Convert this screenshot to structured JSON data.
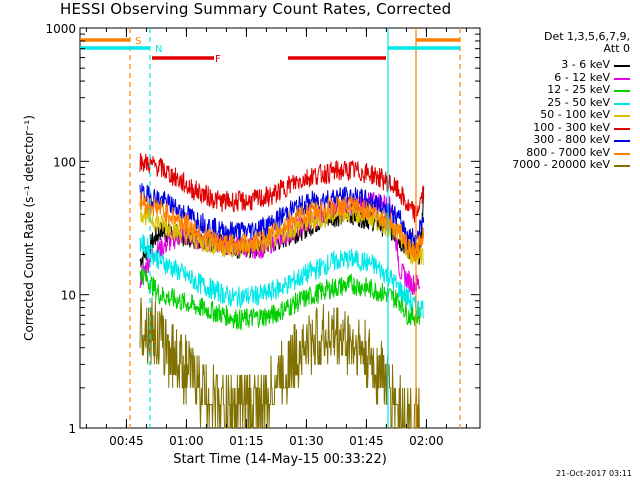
{
  "chart_data": {
    "type": "line",
    "title": "HESSI Observing Summary Count Rates, Corrected",
    "xlabel": "Start Time (14-May-15 00:33:22)",
    "ylabel_html": "Corrected Count Rate (s⁻¹ detector⁻¹)",
    "yscale": "log",
    "ylim": [
      1,
      1000
    ],
    "xlim_minutes": [
      0,
      100
    ],
    "y_tick_labels": [
      "1",
      "10",
      "100",
      "1000"
    ],
    "x_tick_labels": [
      "00:45",
      "01:00",
      "01:15",
      "01:30",
      "01:45",
      "02:00"
    ],
    "x_tick_minutes": [
      11.6,
      26.6,
      41.6,
      56.6,
      71.6,
      86.6
    ],
    "legend_header": [
      "Det 1,3,5,6,7,9,",
      "Att 0"
    ],
    "series": [
      {
        "name": "3 - 6 keV",
        "color": "#000000",
        "points": [
          [
            15,
            18
          ],
          [
            20,
            30
          ],
          [
            30,
            26
          ],
          [
            40,
            22
          ],
          [
            48,
            24
          ],
          [
            55,
            30
          ],
          [
            62,
            38
          ],
          [
            68,
            40
          ],
          [
            73,
            36
          ],
          [
            78,
            30
          ],
          [
            82,
            22
          ],
          [
            85,
            20
          ],
          [
            86,
            60
          ]
        ]
      },
      {
        "name": "6 - 12 keV",
        "color": "#e000e0",
        "points": [
          [
            15,
            13
          ],
          [
            18,
            20
          ],
          [
            25,
            28
          ],
          [
            35,
            24
          ],
          [
            45,
            22
          ],
          [
            55,
            32
          ],
          [
            62,
            42
          ],
          [
            70,
            48
          ],
          [
            75,
            50
          ],
          [
            78,
            45
          ],
          [
            80,
            15
          ],
          [
            83,
            12
          ],
          [
            85,
            12
          ]
        ]
      },
      {
        "name": "12 - 25 keV",
        "color": "#00d000",
        "points": [
          [
            15,
            15
          ],
          [
            20,
            10
          ],
          [
            30,
            8
          ],
          [
            40,
            6.5
          ],
          [
            48,
            7
          ],
          [
            55,
            9
          ],
          [
            62,
            11
          ],
          [
            68,
            12
          ],
          [
            73,
            11
          ],
          [
            77,
            10
          ],
          [
            80,
            9
          ],
          [
            82,
            7
          ],
          [
            84,
            7
          ],
          [
            85,
            7
          ]
        ]
      },
      {
        "name": "25 - 50 keV",
        "color": "#00e8e8",
        "points": [
          [
            15,
            25
          ],
          [
            20,
            18
          ],
          [
            30,
            12
          ],
          [
            38,
            9.5
          ],
          [
            46,
            10
          ],
          [
            52,
            12
          ],
          [
            58,
            15
          ],
          [
            64,
            18
          ],
          [
            68,
            18.5
          ],
          [
            73,
            17
          ],
          [
            77,
            14
          ],
          [
            80,
            11
          ],
          [
            84,
            8
          ],
          [
            86,
            8
          ]
        ]
      },
      {
        "name": "50 - 100 keV",
        "color": "#d8c000",
        "points": [
          [
            15,
            42
          ],
          [
            20,
            34
          ],
          [
            30,
            25
          ],
          [
            38,
            22
          ],
          [
            46,
            24
          ],
          [
            52,
            30
          ],
          [
            58,
            36
          ],
          [
            64,
            40
          ],
          [
            68,
            42
          ],
          [
            73,
            38
          ],
          [
            77,
            32
          ],
          [
            80,
            28
          ],
          [
            82,
            20
          ],
          [
            86,
            20
          ]
        ]
      },
      {
        "name": "100 - 300 keV",
        "color": "#e00000",
        "points": [
          [
            15,
            100
          ],
          [
            20,
            90
          ],
          [
            28,
            62
          ],
          [
            35,
            50
          ],
          [
            42,
            50
          ],
          [
            48,
            55
          ],
          [
            52,
            66
          ],
          [
            58,
            78
          ],
          [
            64,
            84
          ],
          [
            68,
            86
          ],
          [
            73,
            80
          ],
          [
            77,
            70
          ],
          [
            80,
            58
          ],
          [
            82,
            45
          ],
          [
            84,
            40
          ],
          [
            86,
            60
          ]
        ]
      },
      {
        "name": "300 - 800 keV",
        "color": "#0000e0",
        "points": [
          [
            15,
            58
          ],
          [
            20,
            52
          ],
          [
            28,
            38
          ],
          [
            35,
            30
          ],
          [
            42,
            30
          ],
          [
            48,
            34
          ],
          [
            52,
            42
          ],
          [
            58,
            50
          ],
          [
            64,
            54
          ],
          [
            68,
            54
          ],
          [
            73,
            50
          ],
          [
            77,
            44
          ],
          [
            80,
            36
          ],
          [
            82,
            28
          ],
          [
            84,
            26
          ],
          [
            86,
            40
          ]
        ]
      },
      {
        "name": "800 - 7000 keV",
        "color": "#ff8000",
        "points": [
          [
            15,
            50
          ],
          [
            20,
            44
          ],
          [
            28,
            32
          ],
          [
            35,
            24
          ],
          [
            42,
            24
          ],
          [
            48,
            28
          ],
          [
            52,
            35
          ],
          [
            58,
            42
          ],
          [
            64,
            46
          ],
          [
            68,
            46
          ],
          [
            73,
            42
          ],
          [
            77,
            36
          ],
          [
            80,
            30
          ],
          [
            82,
            22
          ],
          [
            84,
            20
          ],
          [
            86,
            30
          ]
        ]
      },
      {
        "name": "7000 - 20000 keV",
        "color": "#807000",
        "points": [
          [
            15,
            6
          ],
          [
            18,
            5.5
          ],
          [
            22,
            4
          ],
          [
            26,
            3
          ],
          [
            30,
            2
          ],
          [
            35,
            1.5
          ],
          [
            40,
            1.5
          ],
          [
            46,
            1.5
          ],
          [
            50,
            2.5
          ],
          [
            54,
            3.5
          ],
          [
            58,
            4.5
          ],
          [
            63,
            5
          ],
          [
            67,
            4.5
          ],
          [
            70,
            4
          ],
          [
            73,
            3
          ],
          [
            76,
            2.5
          ],
          [
            79,
            1.5
          ],
          [
            83,
            1.2
          ],
          [
            85,
            1
          ]
        ]
      }
    ],
    "flags": [
      {
        "label": "S",
        "color": "#ff8000",
        "segments_minutes": [
          [
            0,
            12.5
          ],
          [
            84,
            95
          ]
        ],
        "y_level": "top"
      },
      {
        "label": "N",
        "color": "#00e8e8",
        "segments_minutes": [
          [
            0,
            17.5
          ],
          [
            77,
            95
          ]
        ],
        "y_level": "second"
      },
      {
        "label": "F",
        "color": "#e00000",
        "segments_minutes": [
          [
            18,
            33.5
          ],
          [
            52,
            76.5
          ]
        ],
        "y_level": "third"
      }
    ],
    "vertical_markers": [
      {
        "minute": 12.5,
        "color": "#ff8000",
        "style": "dashed"
      },
      {
        "minute": 17.5,
        "color": "#00e8e8",
        "style": "dashed"
      },
      {
        "minute": 77,
        "color": "#00e8e8",
        "style": "solid"
      },
      {
        "minute": 84,
        "color": "#ff8000",
        "style": "solid"
      },
      {
        "minute": 95,
        "color": "#ff8000",
        "style": "dashed"
      }
    ]
  },
  "footer_text": "21-Oct-2017 03:11"
}
